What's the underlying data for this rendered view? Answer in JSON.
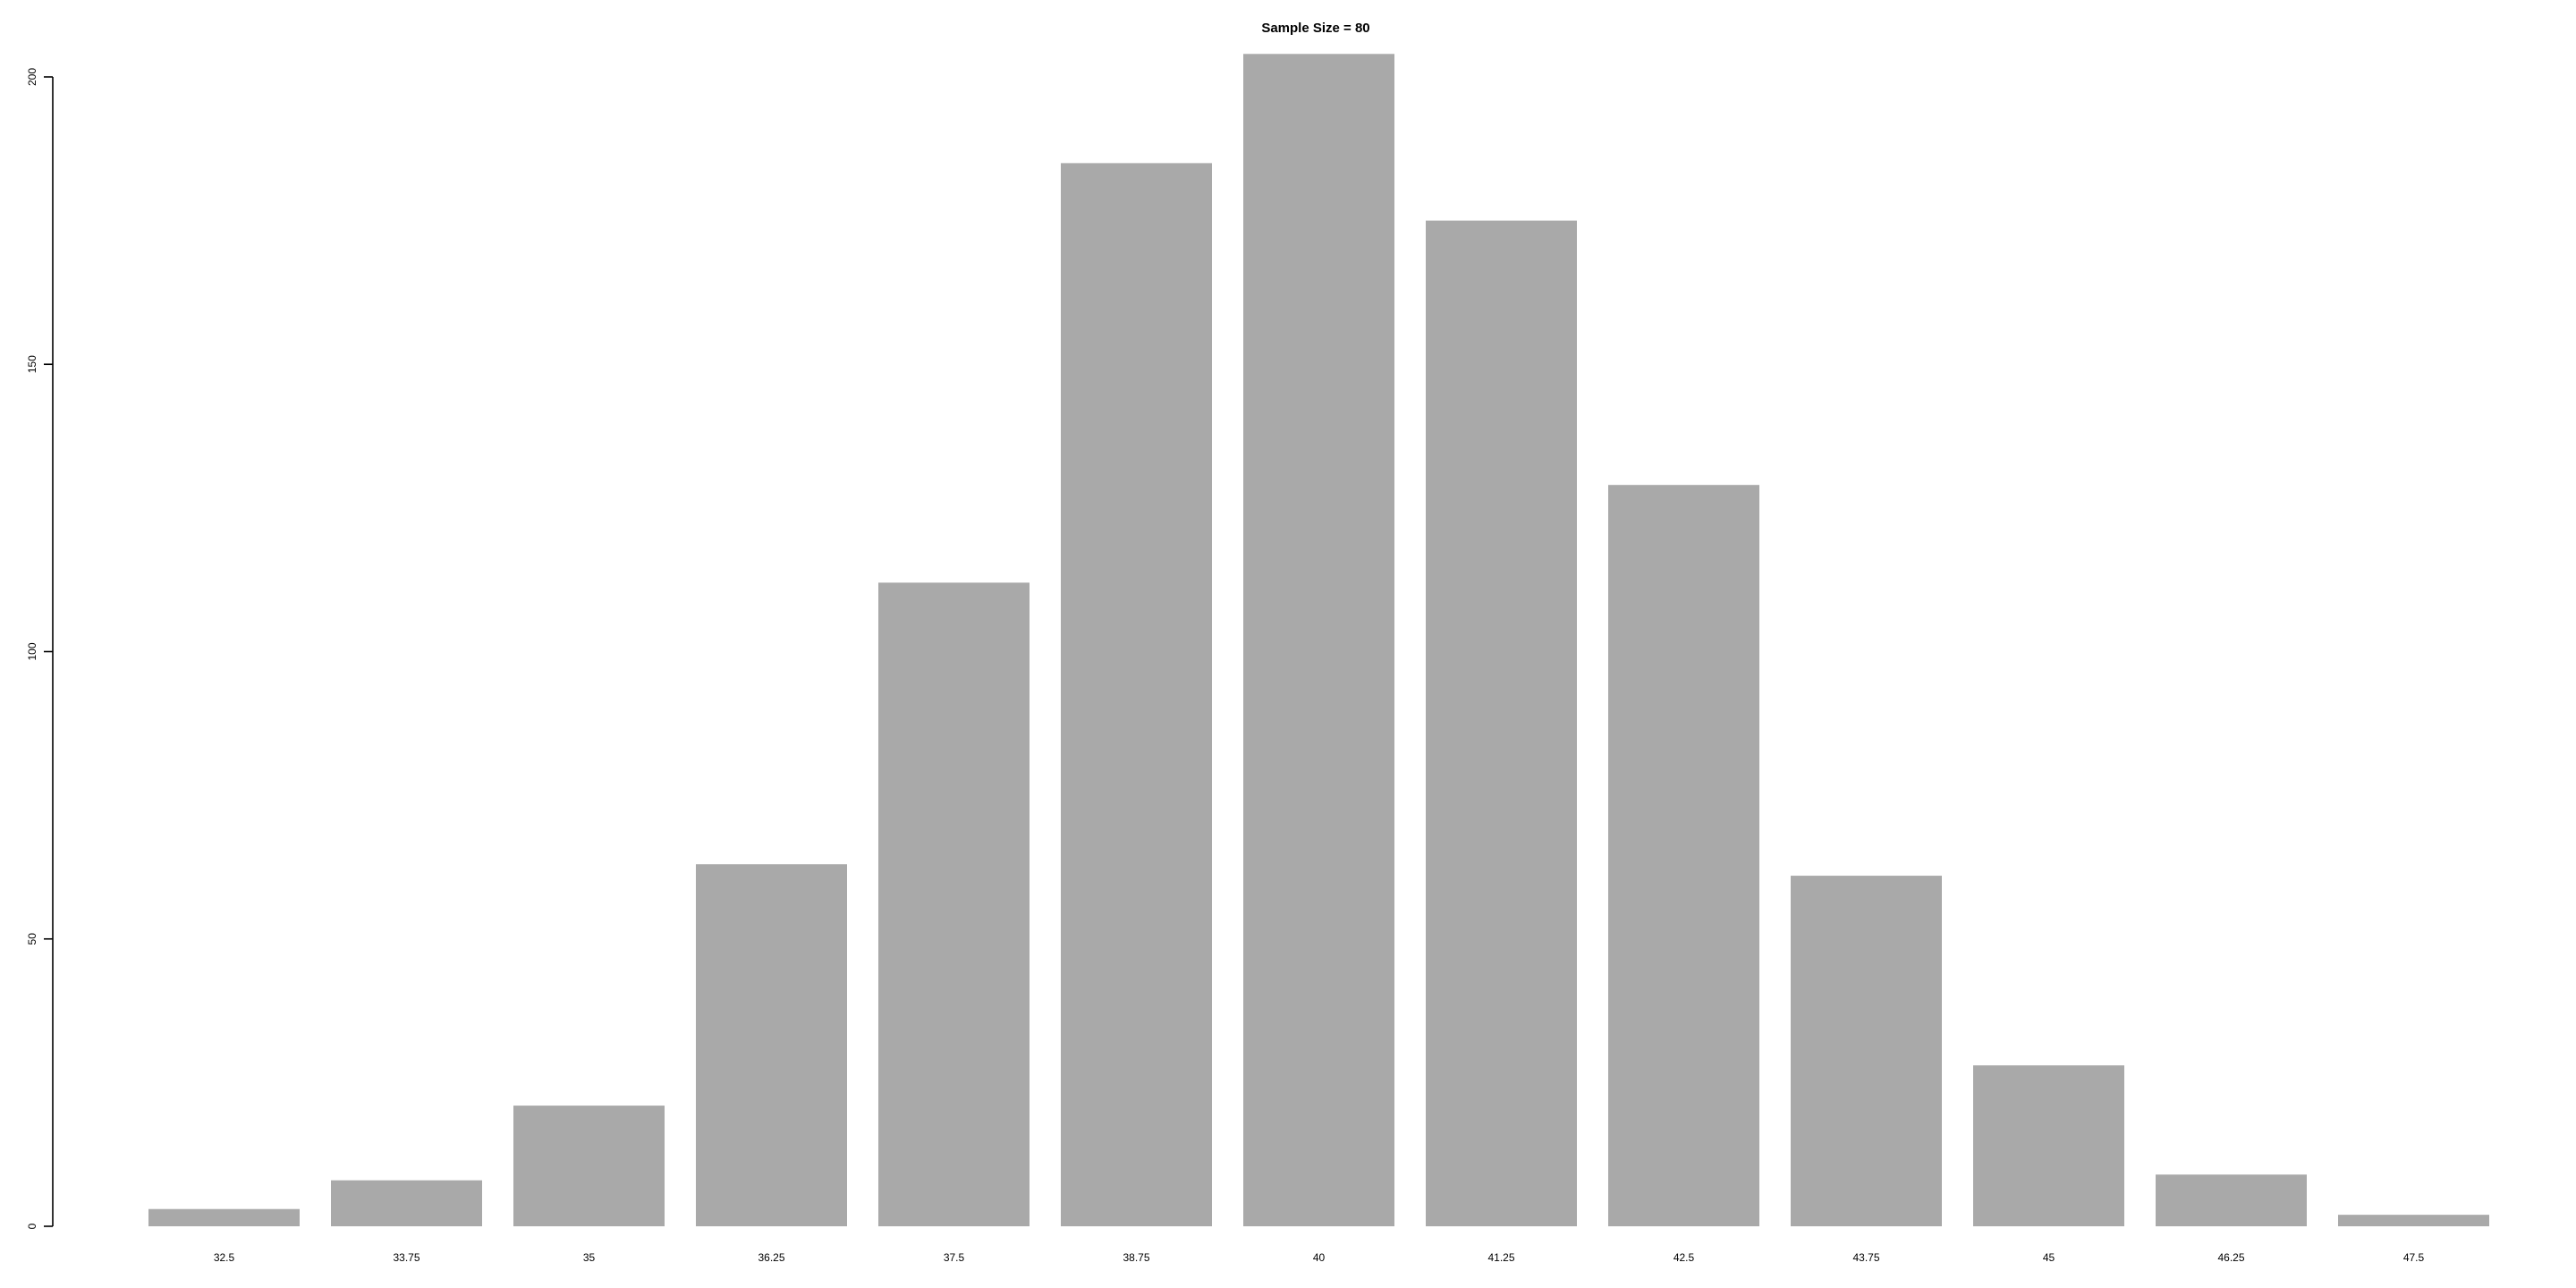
{
  "chart_data": {
    "type": "bar",
    "title": "Sample Size = 80",
    "xlabel": "",
    "ylabel": "",
    "categories": [
      "32.5",
      "33.75",
      "35",
      "36.25",
      "37.5",
      "38.75",
      "40",
      "41.25",
      "42.5",
      "43.75",
      "45",
      "46.25",
      "47.5"
    ],
    "values": [
      3,
      8,
      21,
      63,
      112,
      185,
      204,
      175,
      129,
      61,
      28,
      9,
      2
    ],
    "ylim": [
      0,
      204
    ],
    "yticks": [
      "0",
      "50",
      "100",
      "150",
      "200"
    ],
    "bar_color": "#a9a9a9",
    "grid": false,
    "legend": "none"
  }
}
